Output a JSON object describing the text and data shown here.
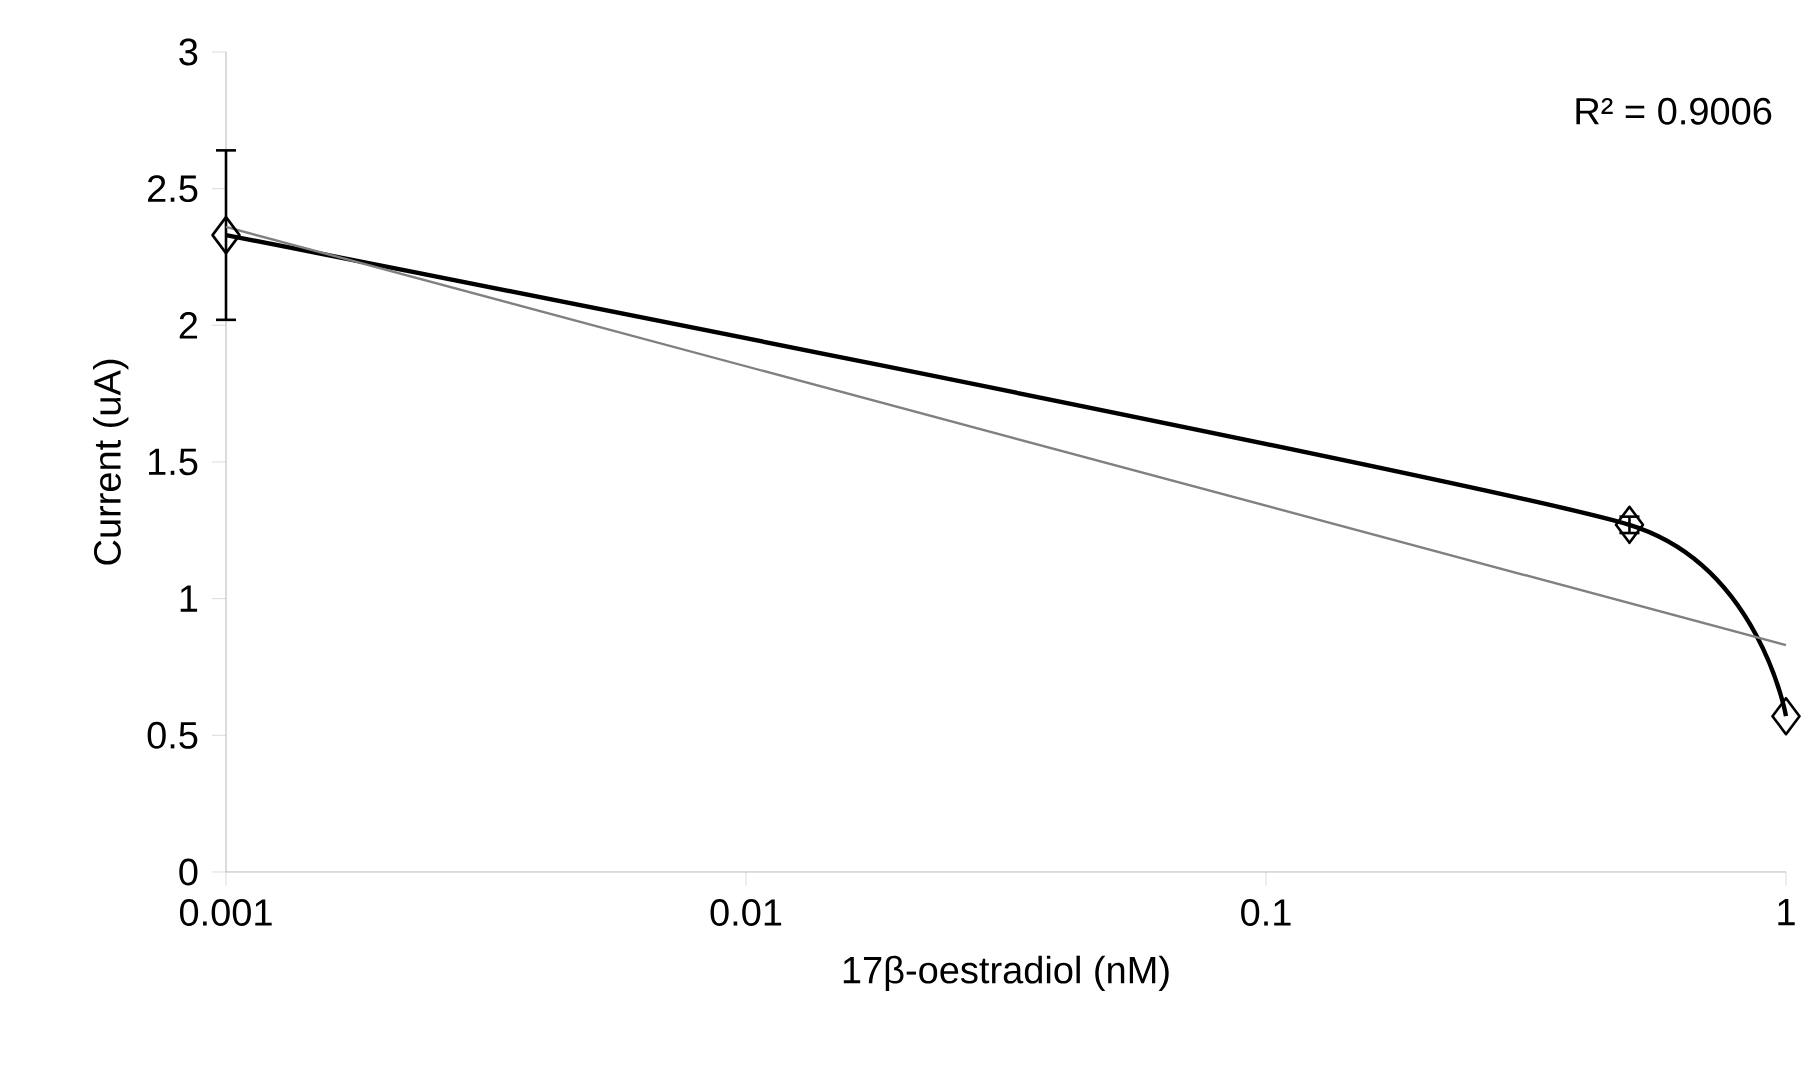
{
  "chart_data": {
    "type": "line",
    "xlabel": "17β-oestradiol (nM)",
    "ylabel": "Current (uA)",
    "log": "x",
    "xlim": [
      0.001,
      1
    ],
    "xticks": [
      0.001,
      0.01,
      0.1,
      1
    ],
    "ylim": [
      0,
      3
    ],
    "yticks": [
      0,
      0.5,
      1,
      1.5,
      2,
      2.5,
      3
    ],
    "annotations": [
      "R² = 0.9006"
    ],
    "series": [
      {
        "color": "#000000",
        "marker": "diamond",
        "x": [
          0.001,
          0.5,
          1
        ],
        "values": [
          2.33,
          1.27,
          0.57
        ],
        "errors": [
          0.31,
          0.03,
          null
        ]
      },
      {
        "color": "#808080",
        "marker": "none",
        "x": [
          0.001,
          1
        ],
        "values": [
          2.36,
          0.83
        ]
      }
    ]
  }
}
